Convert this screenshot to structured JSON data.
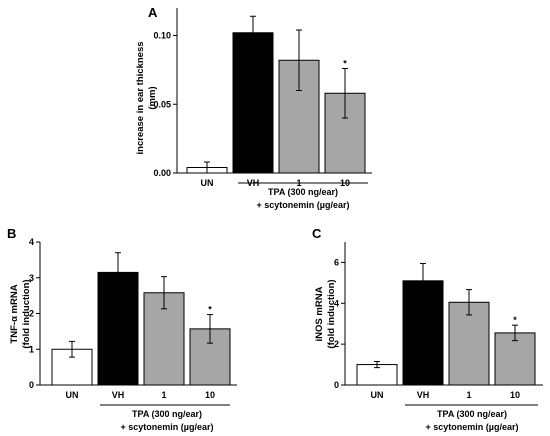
{
  "chart_data": [
    {
      "panel": "A",
      "type": "bar",
      "ylabel": "increase in ear thickness",
      "yunit": "(mm)",
      "yticks": [
        "0.00",
        "0.05",
        "0.10"
      ],
      "ytick_values": [
        0,
        0.05,
        0.1
      ],
      "ylim": [
        0,
        0.12
      ],
      "categories": [
        "UN",
        "VH",
        "1",
        "10"
      ],
      "values": [
        0.004,
        0.102,
        0.082,
        0.058
      ],
      "errors": [
        0.004,
        0.012,
        0.022,
        0.018
      ],
      "colors": [
        "#ffffff",
        "#000000",
        "#a6a6a6",
        "#a6a6a6"
      ],
      "significance": [
        "",
        "",
        "",
        "*"
      ],
      "group_label_line1": "TPA (300 ng/ear)",
      "group_label_line2": "+ scytonemin (µg/ear)"
    },
    {
      "panel": "B",
      "type": "bar",
      "ylabel": "TNF-α mRNA",
      "yunit": "(fold induction)",
      "yticks": [
        "0",
        "1",
        "2",
        "3",
        "4"
      ],
      "ytick_values": [
        0,
        1,
        2,
        3,
        4
      ],
      "ylim": [
        0,
        4
      ],
      "categories": [
        "UN",
        "VH",
        "1",
        "10"
      ],
      "values": [
        1.0,
        3.15,
        2.58,
        1.57
      ],
      "errors": [
        0.22,
        0.55,
        0.45,
        0.4
      ],
      "colors": [
        "#ffffff",
        "#000000",
        "#a6a6a6",
        "#a6a6a6"
      ],
      "significance": [
        "",
        "",
        "",
        "*"
      ],
      "group_label_line1": "TPA (300 ng/ear)",
      "group_label_line2": "+ scytonemin (µg/ear)"
    },
    {
      "panel": "C",
      "type": "bar",
      "ylabel": "iNOS mRNA",
      "yunit": "(fold induction)",
      "yticks": [
        "0",
        "2",
        "4",
        "6"
      ],
      "ytick_values": [
        0,
        2,
        4,
        6
      ],
      "ylim": [
        0,
        7
      ],
      "categories": [
        "UN",
        "VH",
        "1",
        "10"
      ],
      "values": [
        1.0,
        5.1,
        4.05,
        2.55
      ],
      "errors": [
        0.15,
        0.85,
        0.62,
        0.38
      ],
      "colors": [
        "#ffffff",
        "#000000",
        "#a6a6a6",
        "#a6a6a6"
      ],
      "significance": [
        "",
        "",
        "",
        "*"
      ],
      "group_label_line1": "TPA (300 ng/ear)",
      "group_label_line2": "+ scytonemin (µg/ear)"
    }
  ]
}
